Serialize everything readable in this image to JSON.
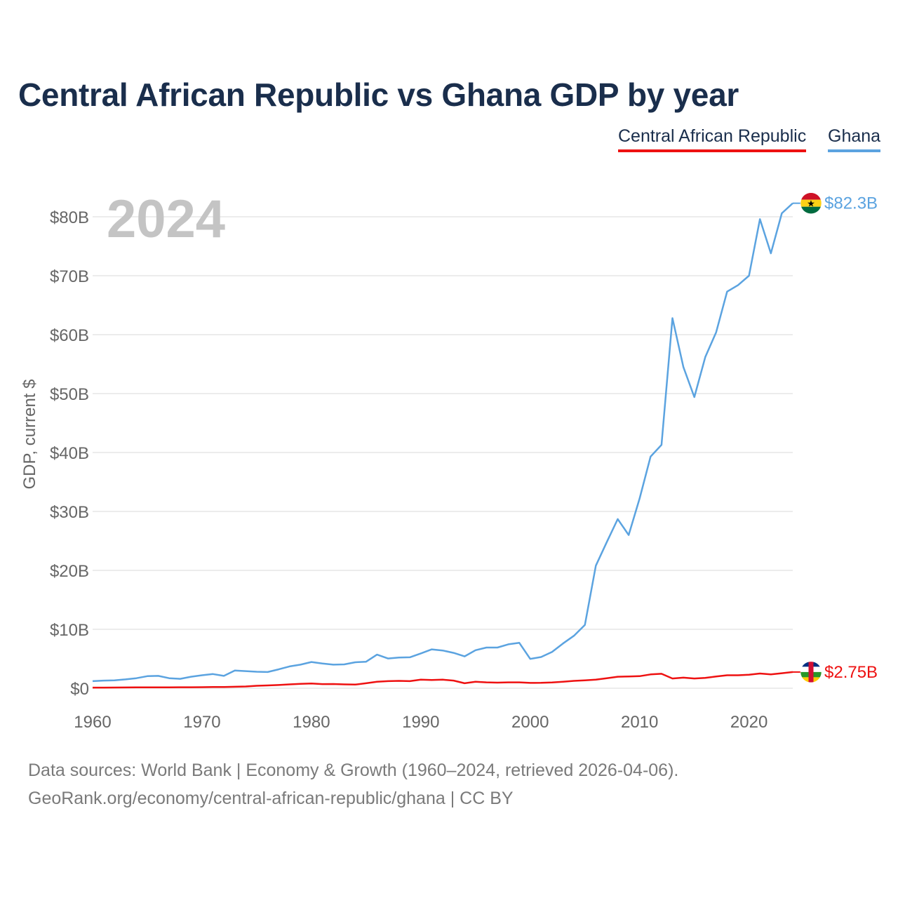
{
  "title": "Central African Republic vs Ghana GDP by year",
  "legend": {
    "central_african_republic": "Central African Republic",
    "ghana": "Ghana"
  },
  "colors": {
    "central_african_republic": "#ee1111",
    "ghana": "#5ba3e0",
    "grid": "#e6e6e6",
    "tick_text": "#666666",
    "year_watermark": "#c4c4c4"
  },
  "footer": {
    "line1": "Data sources: World Bank | Economy & Growth (1960–2024, retrieved 2026-04-06).",
    "line2": "GeoRank.org/economy/central-african-republic/ghana | CC BY"
  },
  "chart_data": {
    "type": "line",
    "title": "Central African Republic vs Ghana GDP by year",
    "xlabel": "",
    "ylabel": "GDP, current $",
    "year_label": "2024",
    "xlim": [
      1960,
      2024
    ],
    "ylim": [
      0,
      85
    ],
    "x_ticks": [
      1960,
      1970,
      1980,
      1990,
      2000,
      2010,
      2020
    ],
    "y_ticks": [
      0,
      10,
      20,
      30,
      40,
      50,
      60,
      70,
      80
    ],
    "y_tick_labels": [
      "$0",
      "$10B",
      "$20B",
      "$30B",
      "$40B",
      "$50B",
      "$60B",
      "$70B",
      "$80B"
    ],
    "legend_position": "top-right",
    "grid": true,
    "x": [
      1960,
      1961,
      1962,
      1963,
      1964,
      1965,
      1966,
      1967,
      1968,
      1969,
      1970,
      1971,
      1972,
      1973,
      1974,
      1975,
      1976,
      1977,
      1978,
      1979,
      1980,
      1981,
      1982,
      1983,
      1984,
      1985,
      1986,
      1987,
      1988,
      1989,
      1990,
      1991,
      1992,
      1993,
      1994,
      1995,
      1996,
      1997,
      1998,
      1999,
      2000,
      2001,
      2002,
      2003,
      2004,
      2005,
      2006,
      2007,
      2008,
      2009,
      2010,
      2011,
      2012,
      2013,
      2014,
      2015,
      2016,
      2017,
      2018,
      2019,
      2020,
      2021,
      2022,
      2023,
      2024
    ],
    "series": [
      {
        "name": "Ghana",
        "color": "#5ba3e0",
        "end_label": "$82.3B",
        "flag_icon": "ghana-flag-icon",
        "values": [
          1.2,
          1.3,
          1.35,
          1.5,
          1.7,
          2.05,
          2.1,
          1.7,
          1.6,
          1.95,
          2.2,
          2.4,
          2.1,
          3.0,
          2.9,
          2.8,
          2.75,
          3.2,
          3.7,
          4.0,
          4.45,
          4.2,
          4.0,
          4.05,
          4.4,
          4.5,
          5.7,
          5.05,
          5.2,
          5.25,
          5.9,
          6.6,
          6.4,
          6.0,
          5.4,
          6.45,
          6.9,
          6.9,
          7.45,
          7.7,
          4.98,
          5.3,
          6.15,
          7.6,
          8.9,
          10.75,
          20.8,
          24.8,
          28.7,
          26.0,
          32.2,
          39.3,
          41.3,
          62.8,
          54.5,
          49.4,
          56.2,
          60.4,
          67.3,
          68.4,
          70.0,
          79.6,
          73.8,
          80.6,
          82.3
        ]
      },
      {
        "name": "Central African Republic",
        "color": "#ee1111",
        "end_label": "$2.75B",
        "flag_icon": "central-african-republic-flag-icon",
        "values": [
          0.11,
          0.11,
          0.12,
          0.13,
          0.14,
          0.14,
          0.15,
          0.16,
          0.17,
          0.17,
          0.18,
          0.2,
          0.22,
          0.25,
          0.3,
          0.42,
          0.48,
          0.55,
          0.65,
          0.75,
          0.8,
          0.7,
          0.72,
          0.65,
          0.62,
          0.85,
          1.1,
          1.2,
          1.25,
          1.2,
          1.45,
          1.4,
          1.45,
          1.3,
          0.85,
          1.1,
          1.0,
          0.95,
          1.0,
          1.0,
          0.9,
          0.92,
          0.98,
          1.1,
          1.25,
          1.33,
          1.45,
          1.7,
          1.95,
          2.0,
          2.05,
          2.35,
          2.45,
          1.65,
          1.8,
          1.65,
          1.75,
          2.0,
          2.2,
          2.2,
          2.3,
          2.5,
          2.35,
          2.55,
          2.75
        ]
      }
    ]
  }
}
